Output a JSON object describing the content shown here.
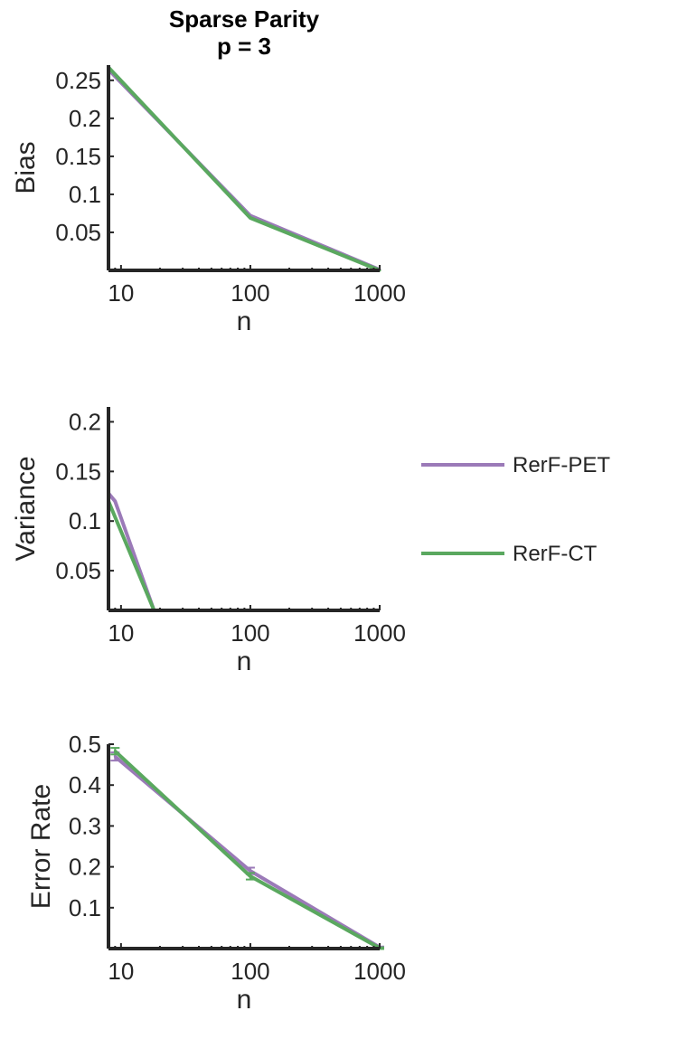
{
  "title": [
    "Sparse Parity",
    "p = 3"
  ],
  "legend": {
    "position": "right",
    "entries": [
      {
        "name": "RerF-PET",
        "color": "#9b7ab8"
      },
      {
        "name": "RerF-CT",
        "color": "#5aa85f"
      }
    ]
  },
  "chart_data": [
    {
      "type": "line",
      "xscale": "log",
      "xlabel": "n",
      "ylabel": "Bias",
      "xlim": [
        8,
        1000
      ],
      "ylim": [
        0,
        0.27
      ],
      "xticks": [
        10,
        100,
        1000
      ],
      "xtick_labels": [
        "10",
        "100",
        "1000"
      ],
      "yticks": [
        0.05,
        0.1,
        0.15,
        0.2,
        0.25
      ],
      "ytick_labels": [
        "0.05",
        "0.1",
        "0.15",
        "0.2",
        "0.25"
      ],
      "series": [
        {
          "name": "RerF-PET",
          "color": "#9b7ab8",
          "x": [
            8,
            100,
            1000
          ],
          "y": [
            0.264,
            0.072,
            0.001
          ]
        },
        {
          "name": "RerF-CT",
          "color": "#5aa85f",
          "x": [
            8,
            100,
            1000
          ],
          "y": [
            0.267,
            0.069,
            0.0
          ]
        }
      ]
    },
    {
      "type": "line",
      "xscale": "log",
      "xlabel": "n",
      "ylabel": "Variance",
      "xlim": [
        8,
        1000
      ],
      "ylim": [
        0.01,
        0.215
      ],
      "xticks": [
        10,
        100,
        1000
      ],
      "xtick_labels": [
        "10",
        "100",
        "1000"
      ],
      "yticks": [
        0.05,
        0.1,
        0.15,
        0.2
      ],
      "ytick_labels": [
        "0.05",
        "0.1",
        "0.15",
        "0.2"
      ],
      "series": [
        {
          "name": "RerF-PET",
          "color": "#9b7ab8",
          "x": [
            8,
            9,
            18
          ],
          "y": [
            0.128,
            0.12,
            0.01
          ]
        },
        {
          "name": "RerF-CT",
          "color": "#5aa85f",
          "x": [
            8,
            18
          ],
          "y": [
            0.12,
            0.01
          ]
        }
      ]
    },
    {
      "type": "line",
      "xscale": "log",
      "xlabel": "n",
      "ylabel": "Error Rate",
      "xlim": [
        8,
        1000
      ],
      "ylim": [
        0,
        0.5
      ],
      "xticks": [
        10,
        100,
        1000
      ],
      "xtick_labels": [
        "10",
        "100",
        "1000"
      ],
      "yticks": [
        0.1,
        0.2,
        0.3,
        0.4,
        0.5
      ],
      "ytick_labels": [
        "0.1",
        "0.2",
        "0.3",
        "0.4",
        "0.5"
      ],
      "series": [
        {
          "name": "RerF-PET",
          "color": "#9b7ab8",
          "x": [
            9,
            100,
            1000
          ],
          "y": [
            0.47,
            0.19,
            0.003
          ],
          "err": [
            0.01,
            0.008,
            0.002
          ]
        },
        {
          "name": "RerF-CT",
          "color": "#5aa85f",
          "x": [
            9,
            100,
            1000
          ],
          "y": [
            0.483,
            0.177,
            0.001
          ],
          "err": [
            0.008,
            0.008,
            0.002
          ]
        }
      ]
    }
  ]
}
